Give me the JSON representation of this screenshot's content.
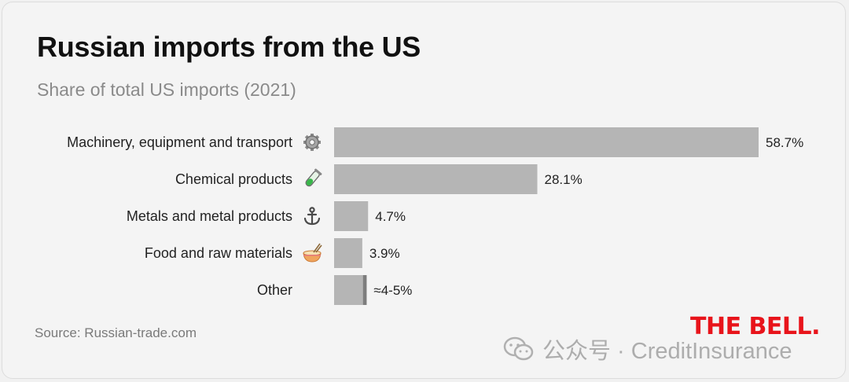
{
  "header": {
    "title": "Russian imports from the US",
    "subtitle": "Share of total US imports (2021)"
  },
  "chart_data": {
    "type": "bar",
    "orientation": "horizontal",
    "title": "Russian imports from the US",
    "subtitle": "Share of total US imports (2021)",
    "xlabel": "",
    "ylabel": "",
    "xlim": [
      0,
      58.7
    ],
    "grid": false,
    "legend": "none",
    "categories": [
      "Machinery, equipment and transport",
      "Chemical products",
      "Metals and metal products",
      "Food and raw materials",
      "Other"
    ],
    "icons": [
      "gear-icon",
      "test-tube-icon",
      "anchor-icon",
      "noodle-bowl-icon",
      ""
    ],
    "values": [
      58.7,
      28.1,
      4.7,
      3.9,
      4.5
    ],
    "range_low": [
      null,
      null,
      null,
      null,
      4
    ],
    "value_labels": [
      "58.7%",
      "28.1%",
      "4.7%",
      "3.9%",
      "≈4-5%"
    ],
    "bar_color": "#b5b5b5",
    "range_color": "#7d7d7d"
  },
  "footer": {
    "source": "Source: Russian-trade.com",
    "brand": "THE BELL.",
    "watermark_text": "公众号 · CreditInsurance",
    "brand_color": "#e8141b"
  }
}
